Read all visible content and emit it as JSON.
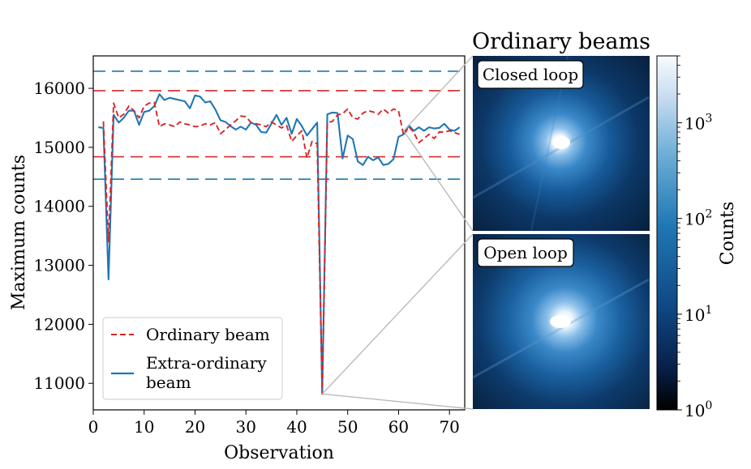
{
  "chart_data": {
    "type": "line",
    "xlabel": "Observation",
    "ylabel": "Maximum counts",
    "xlim": [
      0,
      73
    ],
    "ylim": [
      10550,
      16550
    ],
    "x_ticks": [
      0,
      10,
      20,
      30,
      40,
      50,
      60,
      70
    ],
    "y_ticks": [
      11000,
      12000,
      13000,
      14000,
      15000,
      16000
    ],
    "legend_position": "lower-left",
    "series": [
      {
        "name": "Ordinary beam",
        "style": "dashed",
        "color": "#d62728",
        "x": [
          2,
          3,
          4,
          5,
          6,
          7,
          8,
          9,
          10,
          11,
          12,
          13,
          14,
          15,
          16,
          17,
          18,
          19,
          20,
          21,
          22,
          23,
          24,
          25,
          26,
          27,
          28,
          29,
          30,
          31,
          32,
          33,
          34,
          35,
          36,
          37,
          38,
          39,
          40,
          41,
          42,
          43,
          44,
          45,
          46,
          47,
          48,
          49,
          50,
          51,
          52,
          53,
          54,
          55,
          56,
          57,
          58,
          59,
          60,
          61,
          62,
          63,
          64,
          65,
          66,
          67,
          68,
          69,
          70,
          71,
          72
        ],
        "values": [
          15440,
          13400,
          15750,
          15500,
          15560,
          15700,
          15620,
          15500,
          15700,
          15750,
          15760,
          15350,
          15400,
          15380,
          15350,
          15430,
          15400,
          15380,
          15350,
          15360,
          15400,
          15380,
          15420,
          15230,
          15300,
          15380,
          15450,
          15530,
          15520,
          15420,
          15400,
          15380,
          15350,
          15430,
          15380,
          15330,
          15370,
          15100,
          15200,
          15280,
          14820,
          15100,
          15060,
          10820,
          15420,
          15440,
          15550,
          15570,
          15650,
          15500,
          15480,
          15580,
          15620,
          15600,
          15560,
          15650,
          15580,
          15650,
          15620,
          15200,
          15350,
          15250,
          15080,
          15150,
          15220,
          15150,
          15260,
          15260,
          15280,
          15250,
          15220
        ]
      },
      {
        "name": "Extra-ordinary beam",
        "style": "solid",
        "color": "#1f77b4",
        "x": [
          1,
          2,
          3,
          4,
          5,
          6,
          7,
          8,
          9,
          10,
          11,
          12,
          13,
          14,
          15,
          16,
          17,
          18,
          19,
          20,
          21,
          22,
          23,
          24,
          25,
          26,
          27,
          28,
          29,
          30,
          31,
          32,
          33,
          34,
          35,
          36,
          37,
          38,
          39,
          40,
          41,
          42,
          43,
          44,
          45,
          46,
          47,
          48,
          49,
          50,
          51,
          52,
          53,
          54,
          55,
          56,
          57,
          58,
          59,
          60,
          61,
          62,
          63,
          64,
          65,
          66,
          67,
          68,
          69,
          70,
          71,
          72
        ],
        "values": [
          15340,
          15330,
          12760,
          15550,
          15420,
          15500,
          15620,
          15620,
          15380,
          15600,
          15620,
          15700,
          15900,
          15800,
          15840,
          15820,
          15800,
          15780,
          15660,
          15880,
          15860,
          15760,
          15780,
          15640,
          15460,
          15430,
          15360,
          15300,
          15350,
          15300,
          15420,
          15380,
          15260,
          15250,
          15400,
          15550,
          15380,
          15500,
          15230,
          15480,
          15360,
          15200,
          15310,
          15420,
          10820,
          15560,
          15590,
          15580,
          14810,
          15200,
          15140,
          14760,
          14700,
          14840,
          14780,
          14830,
          14700,
          14720,
          14800,
          15180,
          15220,
          15370,
          15280,
          15340,
          15280,
          15340,
          15320,
          15330,
          15400,
          15300,
          15280,
          15340
        ]
      }
    ],
    "reference_lines": [
      {
        "color": "#1f77b4",
        "style": "dashed",
        "value": 16290
      },
      {
        "color": "#d62728",
        "style": "dashed",
        "value": 15960
      },
      {
        "color": "#d62728",
        "style": "dashed",
        "value": 14840
      },
      {
        "color": "#1f77b4",
        "style": "dashed",
        "value": 14460
      }
    ],
    "zoom_connections": [
      {
        "x": 61,
        "y": 15280,
        "target_panel": "closed_loop"
      },
      {
        "x": 45,
        "y": 10820,
        "target_panel": "open_loop"
      }
    ]
  },
  "right_panel": {
    "title": "Ordinary beams",
    "panels": [
      {
        "key": "closed_loop",
        "label": "Closed loop"
      },
      {
        "key": "open_loop",
        "label": "Open loop"
      }
    ],
    "colorbar": {
      "label": "Counts",
      "scale": "log",
      "range": [
        1,
        5000
      ],
      "colormap": [
        "#000000",
        "#08306b",
        "#1f77b4",
        "#6baed6",
        "#deebf7",
        "#f7fbff"
      ],
      "tick_base": "10",
      "tick_exponents": [
        "0",
        "1",
        "2",
        "3"
      ],
      "tick_values": [
        1,
        10,
        100,
        1000
      ]
    }
  }
}
